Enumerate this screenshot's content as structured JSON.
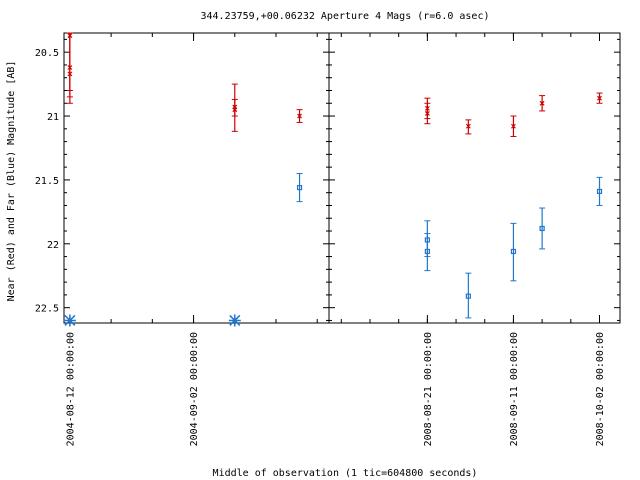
{
  "chart_data": {
    "type": "scatter",
    "title": "344.23759,+00.06232   Aperture 4 Mags (r=6.0 asec)",
    "xlabel": "Middle of observation (1 tic=604800 seconds)",
    "ylabel": "Near (Red) and Far (Blue) Magnitude [AB]",
    "y_inverted": true,
    "ylim": [
      22.62,
      20.35
    ],
    "y_ticks": [
      {
        "value": 20.5,
        "label": "20.5"
      },
      {
        "value": 21,
        "label": "21"
      },
      {
        "value": 21.5,
        "label": "21.5"
      },
      {
        "value": 22,
        "label": "22"
      },
      {
        "value": 22.5,
        "label": "22.5"
      }
    ],
    "panels": [
      {
        "xlim": [
          "2004-08-11",
          "2004-09-25"
        ],
        "x_ticks": [
          {
            "value": "2004-08-12",
            "label": "2004-08-12 00:00:00"
          },
          {
            "value": "2004-09-02",
            "label": "2004-09-02 00:00:00"
          }
        ],
        "series": [
          {
            "color": "#cc0000",
            "marker": "x",
            "points": [
              {
                "x": "2004-08-12",
                "y": 20.37,
                "err_lo": 20.35,
                "err_hi": 20.8
              },
              {
                "x": "2004-08-12",
                "y": 20.62,
                "err_lo": 20.35,
                "err_hi": 20.9
              },
              {
                "x": "2004-08-12",
                "y": 20.67,
                "err_lo": 20.35,
                "err_hi": 20.85
              },
              {
                "x": "2004-09-09",
                "y": 20.95,
                "err_lo": 20.75,
                "err_hi": 21.12
              },
              {
                "x": "2004-09-09",
                "y": 20.93,
                "err_lo": 20.87,
                "err_hi": 21.0
              },
              {
                "x": "2004-09-20",
                "y": 21.0,
                "err_lo": 20.95,
                "err_hi": 21.05
              }
            ]
          },
          {
            "color": "#1f77cc",
            "marker": "square",
            "points": [
              {
                "x": "2004-09-20",
                "y": 21.56,
                "err_lo": 21.45,
                "err_hi": 21.67
              }
            ]
          },
          {
            "color": "#1f77cc",
            "marker": "asterisk",
            "points": [
              {
                "x": "2004-08-12",
                "y": 22.6
              },
              {
                "x": "2004-09-09",
                "y": 22.6
              }
            ]
          }
        ]
      },
      {
        "xlim": [
          "2008-07-28",
          "2008-10-07"
        ],
        "x_ticks": [
          {
            "value": "2008-08-21",
            "label": "2008-08-21 00:00:00"
          },
          {
            "value": "2008-09-11",
            "label": "2008-09-11 00:00:00"
          },
          {
            "value": "2008-10-02",
            "label": "2008-10-02 00:00:00"
          }
        ],
        "series": [
          {
            "color": "#cc0000",
            "marker": "x",
            "points": [
              {
                "x": "2008-08-21",
                "y": 20.94,
                "err_lo": 20.86,
                "err_hi": 21.02
              },
              {
                "x": "2008-08-21",
                "y": 20.98,
                "err_lo": 20.9,
                "err_hi": 21.06
              },
              {
                "x": "2008-08-31",
                "y": 21.08,
                "err_lo": 21.03,
                "err_hi": 21.14
              },
              {
                "x": "2008-09-11",
                "y": 21.08,
                "err_lo": 21.0,
                "err_hi": 21.16
              },
              {
                "x": "2008-09-18",
                "y": 20.9,
                "err_lo": 20.84,
                "err_hi": 20.96
              },
              {
                "x": "2008-10-02",
                "y": 20.86,
                "err_lo": 20.82,
                "err_hi": 20.9
              }
            ]
          },
          {
            "color": "#1f77cc",
            "marker": "square",
            "points": [
              {
                "x": "2008-08-21",
                "y": 21.97,
                "err_lo": 21.82,
                "err_hi": 22.1
              },
              {
                "x": "2008-08-21",
                "y": 22.06,
                "err_lo": 21.92,
                "err_hi": 22.21
              },
              {
                "x": "2008-08-31",
                "y": 22.41,
                "err_lo": 22.23,
                "err_hi": 22.58
              },
              {
                "x": "2008-09-11",
                "y": 22.06,
                "err_lo": 21.84,
                "err_hi": 22.29
              },
              {
                "x": "2008-09-18",
                "y": 21.88,
                "err_lo": 21.72,
                "err_hi": 22.04
              },
              {
                "x": "2008-10-02",
                "y": 21.59,
                "err_lo": 21.48,
                "err_hi": 21.7
              }
            ]
          }
        ]
      }
    ]
  }
}
